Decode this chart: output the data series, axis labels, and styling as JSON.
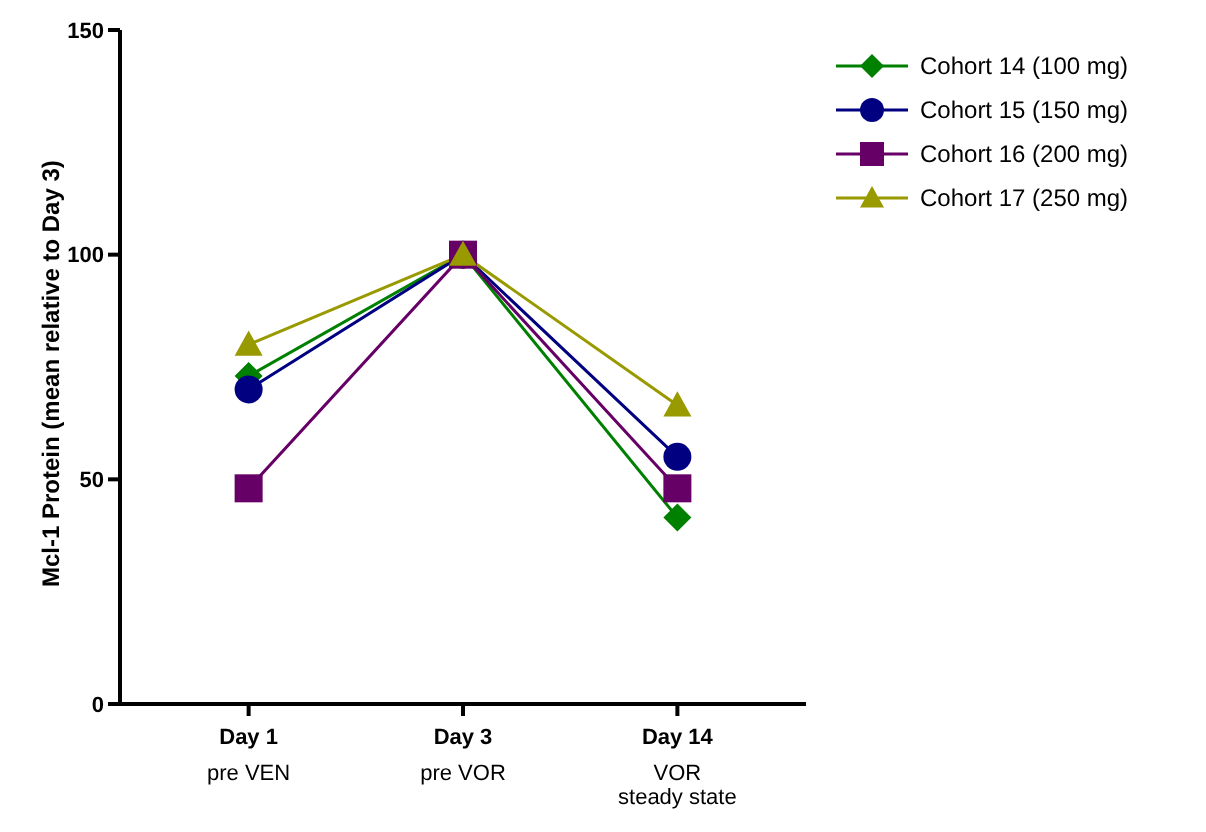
{
  "chart_data": {
    "type": "line",
    "ylabel": "Mcl-1 Protein (mean relative to Day 3)",
    "categories": [
      "Day 1\npre VEN",
      "Day 3\npre VOR",
      "Day 14\nVOR\nsteady state"
    ],
    "ylim": [
      0,
      150
    ],
    "yticks": [
      0,
      50,
      100,
      150
    ],
    "legend": "top right",
    "series": [
      {
        "name": "Cohort 14 (100 mg)",
        "color": "#008000",
        "marker": "diamond",
        "values": [
          73,
          100,
          41.5
        ]
      },
      {
        "name": "Cohort 15 (150 mg)",
        "color": "#000080",
        "marker": "circle",
        "values": [
          70,
          100,
          55
        ]
      },
      {
        "name": "Cohort 16 (200 mg)",
        "color": "#660066",
        "marker": "square",
        "values": [
          48,
          100,
          48
        ]
      },
      {
        "name": "Cohort 17 (250 mg)",
        "color": "#999900",
        "marker": "triangle",
        "values": [
          80,
          100,
          66.5
        ]
      }
    ]
  }
}
